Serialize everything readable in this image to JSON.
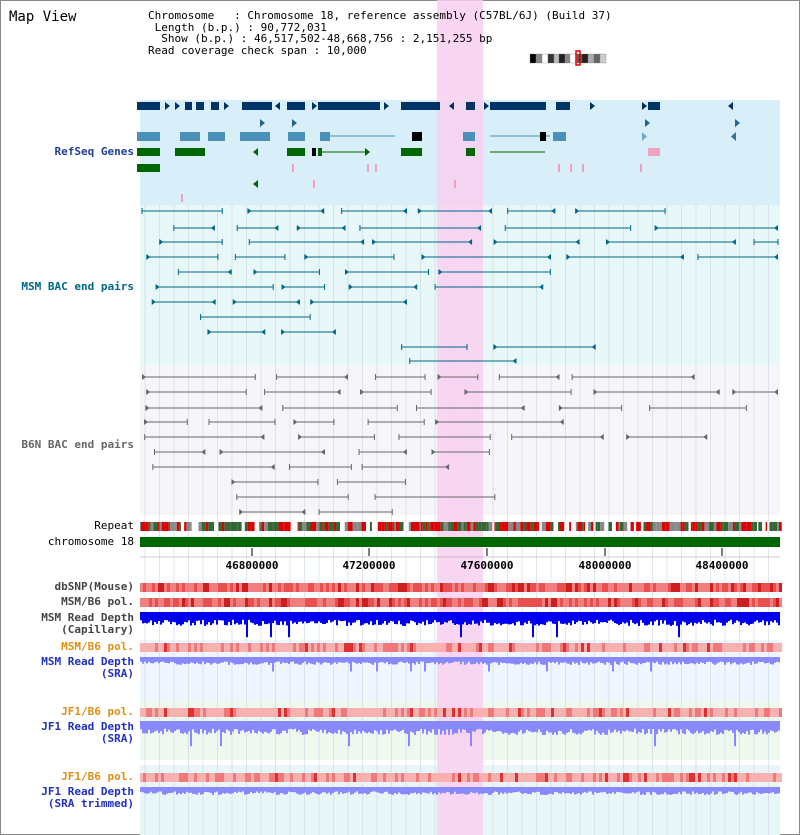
{
  "title": "Map View",
  "info": {
    "chromosome_key": "Chromosome",
    "chromosome_val": "Chromosome 18, reference assembly (C57BL/6J) (Build 37)",
    "length_key": "Length (b.p.)",
    "length_val": "90,772,031",
    "show_key": "Show (b.p.)",
    "show_val": "46,517,502-48,668,756 : 2,151,255 bp",
    "coverage_key": "Read coverage check span",
    "coverage_val": "10,000"
  },
  "tracks": {
    "refseq": "RefSeq Genes",
    "msm_bac": "MSM BAC end pairs",
    "b6n_bac": "B6N BAC end pairs",
    "repeat": "Repeat",
    "chromosome": "chromosome 18",
    "dbsnp": "dbSNP(Mouse)",
    "msm_pol1": "MSM/B6 pol.",
    "msm_depth_cap1": "MSM Read Depth",
    "msm_depth_cap2": "(Capillary)",
    "msm_pol2": "MSM/B6 pol.",
    "msm_depth_sra1": "MSM Read Depth",
    "msm_depth_sra2": "(SRA)",
    "jf1_pol1": "JF1/B6 pol.",
    "jf1_depth1": "JF1 Read Depth",
    "jf1_depth2": "(SRA)",
    "jf1_pol2": "JF1/B6 pol.",
    "jf1_trim1": "JF1 Read Depth",
    "jf1_trim2": "(SRA trimmed)"
  },
  "axis": {
    "ticks": [
      "46800000",
      "47200000",
      "47600000",
      "48000000",
      "48400000"
    ]
  },
  "colors": {
    "refseq_bg": "#d8eef8",
    "bac_bg": "#e8f8f8",
    "highlight": "#f8d0f0",
    "dark_navy": "#003366",
    "teal": "#006688",
    "gray": "#666666",
    "snp_red": "#e04040",
    "depth_blue": "#0000ee",
    "depth_light": "#8888ff"
  }
}
